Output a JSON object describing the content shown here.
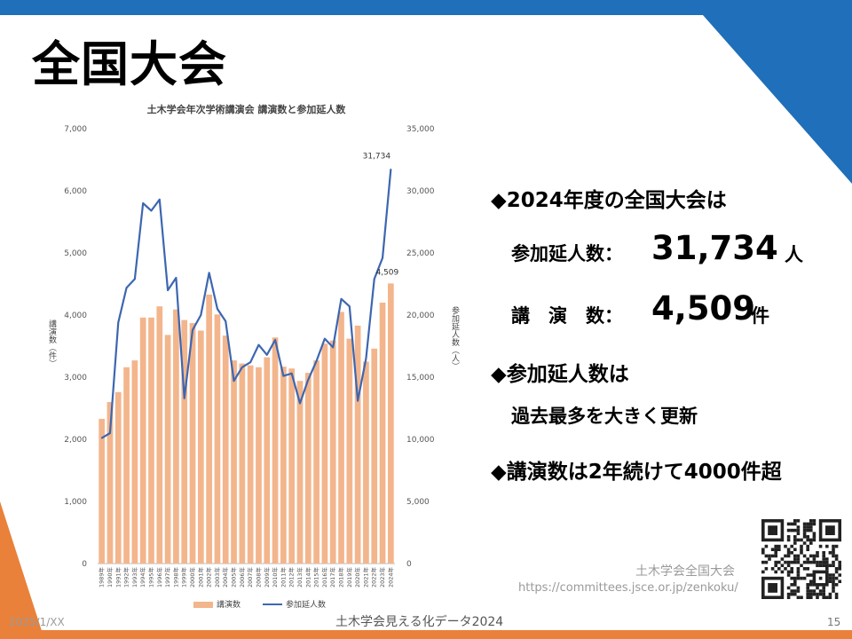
{
  "slide": {
    "title": "全国大会",
    "bullet1": "◆2024年度の全国大会は",
    "attend_label": "参加延人数：",
    "attend_value": "31,734",
    "attend_unit": "人",
    "talks_label": "講　演　数：",
    "talks_value": "4,509",
    "talks_unit": "件",
    "bullet2": "◆参加延人数は",
    "bullet2_sub": "過去最多を大きく更新",
    "bullet3": "◆講演数は2年続けて4000件超"
  },
  "footer": {
    "org": "土木学会全国大会",
    "url": "https://committees.jsce.or.jp/zenkoku/",
    "date": "2025/1/XX",
    "caption": "土木学会見える化データ2024",
    "page": "15"
  },
  "colors": {
    "accent_blue": "#1f6fba",
    "accent_orange": "#e9813a",
    "bar": "#f3b58c",
    "line": "#3d66b0"
  },
  "chart_data": {
    "type": "bar+line",
    "title": "土木学会年次学術講演会 講演数と参加延人数",
    "ylabel_left": "講演数（件）",
    "ylabel_right": "参加延人数（人）",
    "ylim_left": [
      0,
      7000
    ],
    "ylim_right": [
      0,
      35000
    ],
    "yticks_left": [
      "0",
      "1,000",
      "2,000",
      "3,000",
      "4,000",
      "5,000",
      "6,000",
      "7,000"
    ],
    "yticks_right": [
      "0",
      "5,000",
      "10,000",
      "15,000",
      "20,000",
      "25,000",
      "30,000",
      "35,000"
    ],
    "categories": [
      "1989年",
      "1990年",
      "1991年",
      "1992年",
      "1993年",
      "1994年",
      "1995年",
      "1996年",
      "1997年",
      "1998年",
      "1999年",
      "2000年",
      "2001年",
      "2002年",
      "2003年",
      "2004年",
      "2005年",
      "2006年",
      "2007年",
      "2008年",
      "2009年",
      "2010年",
      "2011年",
      "2012年",
      "2013年",
      "2014年",
      "2015年",
      "2016年",
      "2017年",
      "2018年",
      "2019年",
      "2020年",
      "2021年",
      "2022年",
      "2023年",
      "2024年"
    ],
    "series": [
      {
        "name": "講演数",
        "type": "bar",
        "values": [
          2330,
          2600,
          2760,
          3160,
          3270,
          3960,
          3960,
          4140,
          3680,
          4090,
          3920,
          3870,
          3750,
          4330,
          4010,
          3670,
          3270,
          3220,
          3190,
          3160,
          3320,
          3640,
          3170,
          3140,
          2940,
          3070,
          3270,
          3540,
          3590,
          4050,
          3620,
          3830,
          3250,
          3460,
          4200,
          4509
        ]
      },
      {
        "name": "参加延人数",
        "type": "line",
        "values": [
          10100,
          10500,
          19400,
          22200,
          22900,
          29000,
          28400,
          29300,
          22000,
          23000,
          13300,
          18800,
          20000,
          23400,
          20500,
          19500,
          14700,
          15800,
          16200,
          17600,
          16800,
          18000,
          15100,
          15300,
          12900,
          14800,
          16300,
          18100,
          17400,
          21300,
          20700,
          13100,
          16500,
          22900,
          24600,
          31734
        ]
      }
    ],
    "annotations": [
      {
        "series": "参加延人数",
        "index": 35,
        "text": "31,734"
      },
      {
        "series": "講演数",
        "index": 35,
        "text": "4,509"
      }
    ],
    "legend_position": "bottom",
    "grid": false
  }
}
